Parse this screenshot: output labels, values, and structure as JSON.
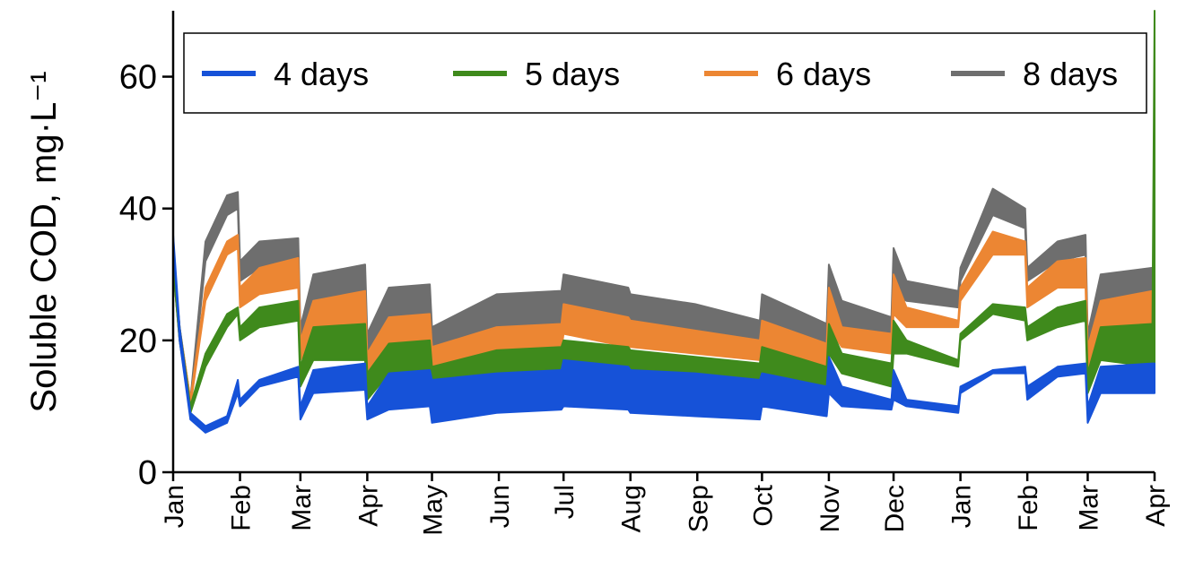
{
  "chart_data": {
    "type": "band",
    "ylabel": "Soluble COD, mg·L⁻¹",
    "x": [
      0,
      3,
      8,
      15,
      25,
      30,
      31,
      40,
      58,
      59,
      65,
      89,
      90,
      100,
      119,
      120,
      150,
      180,
      181,
      211,
      212,
      242,
      272,
      273,
      303,
      304,
      310,
      333,
      334,
      340,
      364,
      365,
      380,
      395,
      396,
      410,
      423,
      424,
      430,
      454,
      455
    ],
    "xlim": [
      0,
      455
    ],
    "xticks": [
      {
        "value": 0,
        "label": "Jan"
      },
      {
        "value": 31,
        "label": "Feb"
      },
      {
        "value": 59,
        "label": "Mar"
      },
      {
        "value": 90,
        "label": "Apr"
      },
      {
        "value": 120,
        "label": "May"
      },
      {
        "value": 151,
        "label": "Jun"
      },
      {
        "value": 181,
        "label": "Jul"
      },
      {
        "value": 212,
        "label": "Aug"
      },
      {
        "value": 243,
        "label": "Sep"
      },
      {
        "value": 273,
        "label": "Oct"
      },
      {
        "value": 304,
        "label": "Nov"
      },
      {
        "value": 334,
        "label": "Dec"
      },
      {
        "value": 365,
        "label": "Jan"
      },
      {
        "value": 396,
        "label": "Feb"
      },
      {
        "value": 424,
        "label": "Mar"
      },
      {
        "value": 455,
        "label": "Apr"
      }
    ],
    "ylim": [
      0,
      70
    ],
    "yticks": [
      0,
      20,
      40,
      60
    ],
    "legend": "top",
    "series": [
      {
        "name": "4 days",
        "color": "#1652d8",
        "low": [
          35,
          20,
          8,
          6,
          7.5,
          12,
          10,
          13,
          14.5,
          8,
          12,
          12.5,
          8,
          9.5,
          10,
          7.5,
          9,
          9.5,
          10,
          9.5,
          9,
          8.5,
          8,
          10,
          8.5,
          12,
          10,
          9.5,
          11,
          10,
          9,
          12,
          15,
          15,
          11,
          14.5,
          15,
          7.5,
          12,
          12,
          12
        ],
        "high": [
          36,
          22,
          9,
          7,
          8.5,
          14,
          11,
          14,
          16,
          10,
          15.5,
          16.5,
          10,
          15,
          15.5,
          14,
          15,
          15.5,
          17,
          16,
          15.5,
          15,
          14,
          15,
          13,
          17.5,
          13,
          11,
          15.5,
          11,
          10,
          13,
          15.5,
          16,
          13,
          16,
          16.5,
          10,
          16,
          16.5,
          16.5
        ]
      },
      {
        "name": "5 days",
        "color": "#3f8a1c",
        "low": [
          31,
          20,
          9,
          16,
          22,
          24,
          20,
          22,
          23,
          13,
          17,
          17,
          11,
          15,
          15,
          13,
          14,
          15,
          16,
          15,
          15,
          14,
          13,
          15,
          12,
          18,
          15,
          13,
          18,
          18,
          16,
          20,
          24,
          23,
          20,
          22,
          23,
          12,
          17,
          16,
          16
        ],
        "high": [
          33,
          22,
          10,
          18,
          24,
          25,
          22,
          25,
          26,
          16,
          22,
          22.5,
          15,
          19.5,
          20,
          16,
          18.5,
          19,
          20,
          19,
          18.5,
          17.5,
          16.5,
          19,
          16,
          22.5,
          18,
          16.5,
          23,
          20,
          17,
          21,
          25.5,
          25,
          22,
          25,
          26,
          15,
          22,
          22.5,
          70
        ]
      },
      {
        "name": "6 days",
        "color": "#ec8633",
        "low": [
          31,
          20,
          10,
          26,
          33,
          34,
          25,
          27,
          28,
          17,
          21,
          22,
          14,
          19,
          19,
          15,
          18,
          18.5,
          21,
          19,
          19,
          18,
          17,
          19,
          16,
          22,
          19,
          18,
          24,
          22,
          22,
          26,
          33,
          33,
          25,
          28,
          28,
          15,
          21,
          22,
          22
        ],
        "high": [
          33,
          22,
          11,
          28,
          35,
          36,
          28,
          31,
          32.5,
          20,
          26,
          27.5,
          18,
          23.5,
          24,
          19,
          22,
          22.5,
          25.5,
          23.5,
          23,
          21.5,
          20,
          23,
          19.5,
          28,
          22,
          21,
          30,
          25,
          23,
          28,
          36.5,
          35,
          28,
          32,
          32.5,
          19,
          26,
          27.5,
          27.5
        ]
      },
      {
        "name": "8 days",
        "color": "#6e6e6e",
        "low": [
          31,
          20,
          10,
          32,
          39,
          40,
          29,
          31,
          32,
          19,
          25,
          26,
          17,
          23,
          23,
          17,
          21,
          22,
          24,
          22,
          22,
          21,
          19,
          21,
          19,
          26,
          22,
          21,
          27,
          26,
          25,
          29,
          39,
          37,
          29,
          32,
          33,
          17,
          25,
          26,
          26
        ],
        "high": [
          33,
          22,
          11,
          35,
          42,
          42.5,
          32,
          35,
          35.5,
          22,
          30,
          31.5,
          21,
          28,
          28.5,
          22,
          27,
          27.5,
          30,
          28,
          27,
          25.5,
          23,
          27,
          22.5,
          31.5,
          26,
          23.5,
          34,
          29,
          27.5,
          31,
          43,
          40,
          31,
          35,
          36,
          21,
          30,
          31,
          31
        ]
      }
    ]
  }
}
